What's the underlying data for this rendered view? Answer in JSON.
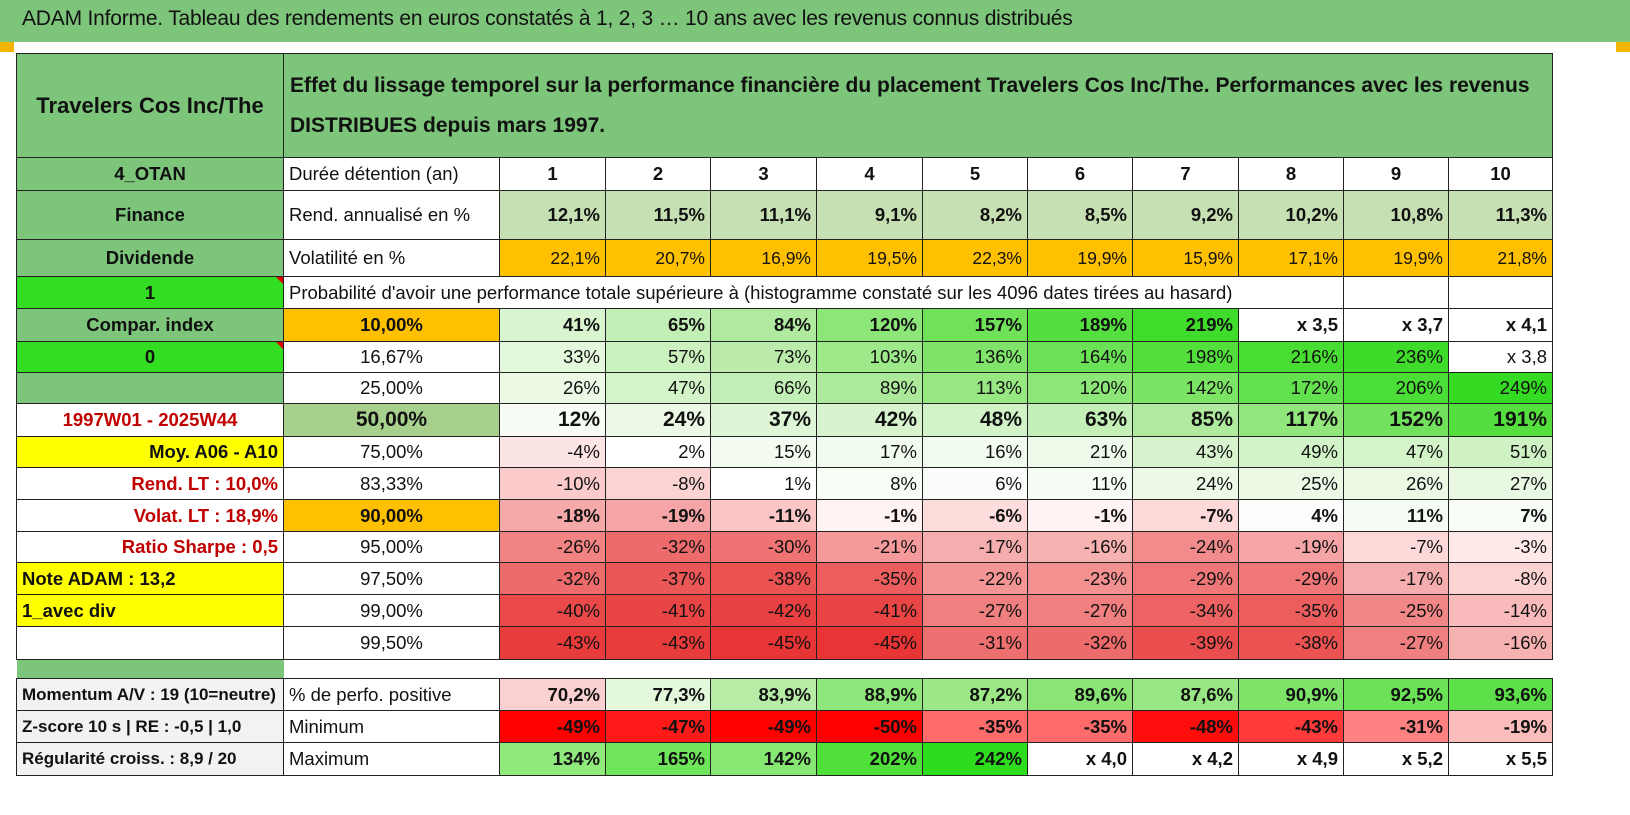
{
  "title": "ADAM Informe. Tableau des rendements en euros constatés à 1, 2, 3 … 10 ans avec les revenus connus distribués",
  "header": {
    "asset_name": "Travelers Cos Inc/The",
    "description": "Effet du lissage temporel sur la performance financière du placement Travelers Cos Inc/The. Performances avec les revenus DISTRIBUES depuis mars 1997."
  },
  "rows": [
    {
      "label": "4_OTAN",
      "label_style": "green",
      "desc": "Durée détention (an)",
      "desc_style": "",
      "cells": [
        {
          "v": "1"
        },
        {
          "v": "2"
        },
        {
          "v": "3"
        },
        {
          "v": "4"
        },
        {
          "v": "5"
        },
        {
          "v": "6"
        },
        {
          "v": "7"
        },
        {
          "v": "8"
        },
        {
          "v": "9"
        },
        {
          "v": "10"
        }
      ]
    },
    {
      "label": "Finance",
      "label_style": "green",
      "desc": "Rend. annualisé en %",
      "desc_style": "",
      "cells": [
        {
          "v": "12,1%",
          "bg": "#c6e0b4"
        },
        {
          "v": "11,5%",
          "bg": "#c6e0b4"
        },
        {
          "v": "11,1%",
          "bg": "#c6e0b4"
        },
        {
          "v": "9,1%",
          "bg": "#c6e0b4"
        },
        {
          "v": "8,2%",
          "bg": "#c6e0b4"
        },
        {
          "v": "8,5%",
          "bg": "#c6e0b4"
        },
        {
          "v": "9,2%",
          "bg": "#c6e0b4"
        },
        {
          "v": "10,2%",
          "bg": "#c6e0b4"
        },
        {
          "v": "10,8%",
          "bg": "#c6e0b4"
        },
        {
          "v": "11,3%",
          "bg": "#c6e0b4"
        }
      ]
    },
    {
      "label": "Dividende",
      "label_style": "green",
      "desc": "Volatilité en %",
      "desc_style": "",
      "cells": [
        {
          "v": "22,1%",
          "bg": "#ffc000"
        },
        {
          "v": "20,7%",
          "bg": "#ffc000"
        },
        {
          "v": "16,9%",
          "bg": "#ffc000"
        },
        {
          "v": "19,5%",
          "bg": "#ffc000"
        },
        {
          "v": "22,3%",
          "bg": "#ffc000"
        },
        {
          "v": "19,9%",
          "bg": "#ffc000"
        },
        {
          "v": "15,9%",
          "bg": "#ffc000"
        },
        {
          "v": "17,1%",
          "bg": "#ffc000"
        },
        {
          "v": "19,9%",
          "bg": "#ffc000"
        },
        {
          "v": "21,8%",
          "bg": "#ffc000"
        }
      ]
    },
    {
      "label": "1",
      "label_style": "lime",
      "desc": "Probabilité d'avoir une performance totale supérieure à (histogramme constaté sur les 4096 dates tirées au hasard)",
      "desc_style": "",
      "cells": []
    },
    {
      "label": "Compar. index",
      "label_style": "green",
      "desc": "10,00%",
      "desc_style": "orange",
      "cells": [
        {
          "v": "41%",
          "bg": "#d9f5d0"
        },
        {
          "v": "65%",
          "bg": "#c2efb5"
        },
        {
          "v": "84%",
          "bg": "#b0ea9f"
        },
        {
          "v": "120%",
          "bg": "#8de678"
        },
        {
          "v": "157%",
          "bg": "#6fe25a"
        },
        {
          "v": "189%",
          "bg": "#55df3f"
        },
        {
          "v": "219%",
          "bg": "#40dc2c"
        },
        {
          "v": "x 3,5"
        },
        {
          "v": "x 3,7"
        },
        {
          "v": "x 4,1"
        }
      ]
    },
    {
      "label": "0",
      "label_style": "lime",
      "desc": "16,67%",
      "desc_style": "",
      "cells": [
        {
          "v": "33%",
          "bg": "#e4f8dc"
        },
        {
          "v": "57%",
          "bg": "#cbf1bf"
        },
        {
          "v": "73%",
          "bg": "#bbecab"
        },
        {
          "v": "103%",
          "bg": "#9ee98a"
        },
        {
          "v": "136%",
          "bg": "#80e46b"
        },
        {
          "v": "164%",
          "bg": "#6be156"
        },
        {
          "v": "198%",
          "bg": "#52df3c"
        },
        {
          "v": "216%",
          "bg": "#47dd33"
        },
        {
          "v": "236%",
          "bg": "#3edb2a"
        },
        {
          "v": "x 3,8"
        }
      ]
    },
    {
      "label": "",
      "label_style": "green",
      "desc": "25,00%",
      "desc_style": "",
      "cells": [
        {
          "v": "26%",
          "bg": "#ebf9e5"
        },
        {
          "v": "47%",
          "bg": "#d3f3c9"
        },
        {
          "v": "66%",
          "bg": "#c2efb5"
        },
        {
          "v": "89%",
          "bg": "#ace99b"
        },
        {
          "v": "113%",
          "bg": "#97e782"
        },
        {
          "v": "120%",
          "bg": "#8de678"
        },
        {
          "v": "142%",
          "bg": "#7be465"
        },
        {
          "v": "172%",
          "bg": "#62e04d"
        },
        {
          "v": "206%",
          "bg": "#4ade36"
        },
        {
          "v": "249%",
          "bg": "#35db22"
        }
      ]
    },
    {
      "label": "1997W01 - 2025W44",
      "label_style": "red",
      "desc": "50,00%",
      "desc_style": "olive",
      "cells": [
        {
          "v": "12%",
          "bg": "#f7fcf5"
        },
        {
          "v": "24%",
          "bg": "#ecf9e7"
        },
        {
          "v": "37%",
          "bg": "#def6d5"
        },
        {
          "v": "42%",
          "bg": "#d8f4cf"
        },
        {
          "v": "48%",
          "bg": "#d1f3c7"
        },
        {
          "v": "63%",
          "bg": "#c4efb7"
        },
        {
          "v": "85%",
          "bg": "#afea9e"
        },
        {
          "v": "117%",
          "bg": "#91e67c"
        },
        {
          "v": "152%",
          "bg": "#72e25c"
        },
        {
          "v": "191%",
          "bg": "#54df3e"
        }
      ]
    },
    {
      "label": "Moy. A06 - A10",
      "label_style": "yellow",
      "desc": "75,00%",
      "desc_style": "",
      "cells": [
        {
          "v": "-4%",
          "bg": "#fde4e4"
        },
        {
          "v": "2%",
          "bg": "#ffffff"
        },
        {
          "v": "15%",
          "bg": "#f3fbf0"
        },
        {
          "v": "17%",
          "bg": "#f1fbee"
        },
        {
          "v": "16%",
          "bg": "#f2fbef"
        },
        {
          "v": "21%",
          "bg": "#eefaea"
        },
        {
          "v": "43%",
          "bg": "#d7f4ce"
        },
        {
          "v": "49%",
          "bg": "#d1f3c7"
        },
        {
          "v": "47%",
          "bg": "#d3f3c9"
        },
        {
          "v": "51%",
          "bg": "#cff2c4"
        }
      ]
    },
    {
      "label": "Rend. LT :     10,0%",
      "label_style": "redright",
      "desc": "83,33%",
      "desc_style": "",
      "cells": [
        {
          "v": "-10%",
          "bg": "#fbcaca"
        },
        {
          "v": "-8%",
          "bg": "#fcd3d3"
        },
        {
          "v": "1%",
          "bg": "#ffffff"
        },
        {
          "v": "8%",
          "bg": "#f8fdf6"
        },
        {
          "v": "6%",
          "bg": "#fafdf9"
        },
        {
          "v": "11%",
          "bg": "#f5fcf3"
        },
        {
          "v": "24%",
          "bg": "#ecf9e7"
        },
        {
          "v": "25%",
          "bg": "#ebf9e5"
        },
        {
          "v": "26%",
          "bg": "#eaf8e4"
        },
        {
          "v": "27%",
          "bg": "#e9f8e3"
        }
      ]
    },
    {
      "label": "Volat. LT :    18,9%",
      "label_style": "redright",
      "desc": "90,00%",
      "desc_style": "orange",
      "cells": [
        {
          "v": "-18%",
          "bg": "#f5a9a9"
        },
        {
          "v": "-19%",
          "bg": "#f5a5a5"
        },
        {
          "v": "-11%",
          "bg": "#fbc6c6"
        },
        {
          "v": "-1%",
          "bg": "#fff3f3"
        },
        {
          "v": "-6%",
          "bg": "#fddcdc"
        },
        {
          "v": "-1%",
          "bg": "#fff3f3"
        },
        {
          "v": "-7%",
          "bg": "#fdd8d8"
        },
        {
          "v": "4%",
          "bg": "#fbfefa"
        },
        {
          "v": "11%",
          "bg": "#f5fcf3"
        },
        {
          "v": "7%",
          "bg": "#f9fdf7"
        }
      ]
    },
    {
      "label": "Ratio Sharpe :     0,5",
      "label_style": "redright",
      "desc": "95,00%",
      "desc_style": "",
      "cells": [
        {
          "v": "-26%",
          "bg": "#f18383"
        },
        {
          "v": "-32%",
          "bg": "#ee6b6b"
        },
        {
          "v": "-30%",
          "bg": "#ef7373"
        },
        {
          "v": "-21%",
          "bg": "#f49a9a"
        },
        {
          "v": "-17%",
          "bg": "#f6adad"
        },
        {
          "v": "-16%",
          "bg": "#f6b1b1"
        },
        {
          "v": "-24%",
          "bg": "#f28c8c"
        },
        {
          "v": "-19%",
          "bg": "#f5a5a5"
        },
        {
          "v": "-7%",
          "bg": "#fdd8d8"
        },
        {
          "v": "-3%",
          "bg": "#fee8e8"
        }
      ]
    },
    {
      "label": "Note ADAM : 13,2",
      "label_style": "yellowleft",
      "desc": "97,50%",
      "desc_style": "",
      "cells": [
        {
          "v": "-32%",
          "bg": "#ee6b6b"
        },
        {
          "v": "-37%",
          "bg": "#eb5656"
        },
        {
          "v": "-38%",
          "bg": "#eb5252"
        },
        {
          "v": "-35%",
          "bg": "#ec5e5e"
        },
        {
          "v": "-22%",
          "bg": "#f39595"
        },
        {
          "v": "-23%",
          "bg": "#f39090"
        },
        {
          "v": "-29%",
          "bg": "#f07777"
        },
        {
          "v": "-29%",
          "bg": "#f07777"
        },
        {
          "v": "-17%",
          "bg": "#f6adad"
        },
        {
          "v": "-8%",
          "bg": "#fcd3d3"
        }
      ]
    },
    {
      "label": "1_avec div",
      "label_style": "yellowleft",
      "desc": "99,00%",
      "desc_style": "",
      "cells": [
        {
          "v": "-40%",
          "bg": "#ea4949"
        },
        {
          "v": "-41%",
          "bg": "#e94545"
        },
        {
          "v": "-42%",
          "bg": "#e94141"
        },
        {
          "v": "-41%",
          "bg": "#e94545"
        },
        {
          "v": "-27%",
          "bg": "#f07f7f"
        },
        {
          "v": "-27%",
          "bg": "#f07f7f"
        },
        {
          "v": "-34%",
          "bg": "#ed6262"
        },
        {
          "v": "-35%",
          "bg": "#ec5e5e"
        },
        {
          "v": "-25%",
          "bg": "#f28787"
        },
        {
          "v": "-14%",
          "bg": "#f8baba"
        }
      ]
    },
    {
      "label": "",
      "label_style": "white",
      "desc": "99,50%",
      "desc_style": "",
      "cells": [
        {
          "v": "-43%",
          "bg": "#e83c3c"
        },
        {
          "v": "-43%",
          "bg": "#e83c3c"
        },
        {
          "v": "-45%",
          "bg": "#e73434"
        },
        {
          "v": "-45%",
          "bg": "#e73434"
        },
        {
          "v": "-31%",
          "bg": "#ee6f6f"
        },
        {
          "v": "-32%",
          "bg": "#ee6b6b"
        },
        {
          "v": "-39%",
          "bg": "#ea4d4d"
        },
        {
          "v": "-38%",
          "bg": "#eb5252"
        },
        {
          "v": "-27%",
          "bg": "#f07f7f"
        },
        {
          "v": "-16%",
          "bg": "#f6b1b1"
        }
      ]
    }
  ],
  "footer_rows": [
    {
      "label": "Momentum A/V : 19 (10=neutre)",
      "desc": "% de perfo. positive",
      "cells": [
        {
          "v": "70,2%",
          "bg": "#fbd0d0"
        },
        {
          "v": "77,3%",
          "bg": "#e4f8dc"
        },
        {
          "v": "83,9%",
          "bg": "#b7eca6"
        },
        {
          "v": "88,9%",
          "bg": "#8fe67a"
        },
        {
          "v": "87,2%",
          "bg": "#9ce887"
        },
        {
          "v": "89,6%",
          "bg": "#8ae575"
        },
        {
          "v": "87,6%",
          "bg": "#99e784"
        },
        {
          "v": "90,9%",
          "bg": "#7ee469"
        },
        {
          "v": "92,5%",
          "bg": "#6ce257"
        },
        {
          "v": "93,6%",
          "bg": "#5ee04a"
        }
      ]
    },
    {
      "label": "Z-score 10 s | RE : -0,5 | 1,0",
      "desc": "Minimum",
      "cells": [
        {
          "v": "-49%",
          "bg": "#ff0000"
        },
        {
          "v": "-47%",
          "bg": "#ff1a1a"
        },
        {
          "v": "-49%",
          "bg": "#ff0000"
        },
        {
          "v": "-50%",
          "bg": "#ff0000"
        },
        {
          "v": "-35%",
          "bg": "#ff6a6a"
        },
        {
          "v": "-35%",
          "bg": "#ff6a6a"
        },
        {
          "v": "-48%",
          "bg": "#ff0d0d"
        },
        {
          "v": "-43%",
          "bg": "#ff3a3a"
        },
        {
          "v": "-31%",
          "bg": "#ff8282"
        },
        {
          "v": "-19%",
          "bg": "#fbbcbc"
        }
      ]
    },
    {
      "label": "Régularité croiss. : 8,9 / 20",
      "desc": "Maximum",
      "cells": [
        {
          "v": "134%",
          "bg": "#8fe97b"
        },
        {
          "v": "165%",
          "bg": "#6ee55a"
        },
        {
          "v": "142%",
          "bg": "#86e872"
        },
        {
          "v": "202%",
          "bg": "#4fe03a"
        },
        {
          "v": "242%",
          "bg": "#2ddc1c"
        },
        {
          "v": "x 4,0"
        },
        {
          "v": "x 4,2"
        },
        {
          "v": "x 4,9"
        },
        {
          "v": "x 5,2"
        },
        {
          "v": "x 5,5"
        }
      ]
    }
  ]
}
